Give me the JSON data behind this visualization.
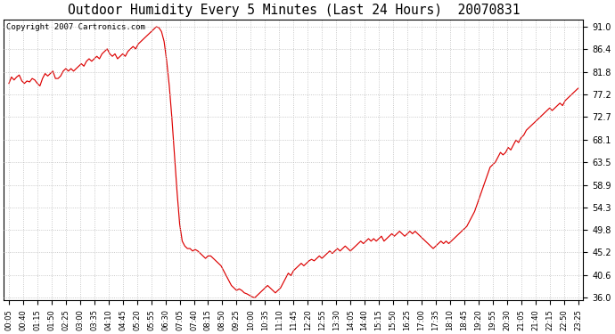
{
  "title": "Outdoor Humidity Every 5 Minutes (Last 24 Hours)  20070831",
  "copyright": "Copyright 2007 Cartronics.com",
  "line_color": "#dd0000",
  "background_color": "#ffffff",
  "grid_color": "#bbbbbb",
  "yticks": [
    36.0,
    40.6,
    45.2,
    49.8,
    54.3,
    58.9,
    63.5,
    68.1,
    72.7,
    77.2,
    81.8,
    86.4,
    91.0
  ],
  "ylim": [
    35.5,
    92.5
  ],
  "x_labels": [
    "00:05",
    "00:40",
    "01:15",
    "01:50",
    "02:25",
    "03:00",
    "03:35",
    "04:10",
    "04:45",
    "05:20",
    "05:55",
    "06:30",
    "07:05",
    "07:40",
    "08:15",
    "08:50",
    "09:25",
    "10:00",
    "10:35",
    "11:10",
    "11:45",
    "12:20",
    "12:55",
    "13:30",
    "14:05",
    "14:40",
    "15:15",
    "15:50",
    "16:25",
    "17:00",
    "17:35",
    "18:10",
    "18:45",
    "19:20",
    "19:55",
    "20:30",
    "21:05",
    "21:40",
    "22:15",
    "22:50",
    "23:25"
  ],
  "humidity_values": [
    79.5,
    80.8,
    80.2,
    80.8,
    81.2,
    80.0,
    79.5,
    80.0,
    79.8,
    80.5,
    80.2,
    79.5,
    79.0,
    80.5,
    81.5,
    81.0,
    81.5,
    82.0,
    80.5,
    80.5,
    81.0,
    82.0,
    82.5,
    82.0,
    82.5,
    82.0,
    82.5,
    83.0,
    83.5,
    83.0,
    84.0,
    84.5,
    84.0,
    84.5,
    85.0,
    84.5,
    85.5,
    86.0,
    86.5,
    85.5,
    85.0,
    85.5,
    84.5,
    85.0,
    85.5,
    85.0,
    86.0,
    86.5,
    87.0,
    86.5,
    87.5,
    88.0,
    88.5,
    89.0,
    89.5,
    90.0,
    90.5,
    91.0,
    90.8,
    90.0,
    88.0,
    84.0,
    79.0,
    72.5,
    65.0,
    57.5,
    51.0,
    47.5,
    46.5,
    46.0,
    46.0,
    45.5,
    45.8,
    45.5,
    45.0,
    44.5,
    44.0,
    44.5,
    44.5,
    44.0,
    43.5,
    43.0,
    42.5,
    41.5,
    40.5,
    39.5,
    38.5,
    38.0,
    37.5,
    37.8,
    37.5,
    37.0,
    36.8,
    36.5,
    36.2,
    36.0,
    36.5,
    37.0,
    37.5,
    38.0,
    38.5,
    38.0,
    37.5,
    37.0,
    37.5,
    38.0,
    39.0,
    40.0,
    41.0,
    40.5,
    41.5,
    42.0,
    42.5,
    43.0,
    42.5,
    43.0,
    43.5,
    43.8,
    43.5,
    44.0,
    44.5,
    44.0,
    44.5,
    45.0,
    45.5,
    45.0,
    45.5,
    46.0,
    45.5,
    46.0,
    46.5,
    46.0,
    45.5,
    46.0,
    46.5,
    47.0,
    47.5,
    47.0,
    47.5,
    48.0,
    47.5,
    48.0,
    47.5,
    48.0,
    48.5,
    47.5,
    48.0,
    48.5,
    49.0,
    48.5,
    49.0,
    49.5,
    49.0,
    48.5,
    49.0,
    49.5,
    49.0,
    49.5,
    49.0,
    48.5,
    48.0,
    47.5,
    47.0,
    46.5,
    46.0,
    46.5,
    47.0,
    47.5,
    47.0,
    47.5,
    47.0,
    47.5,
    48.0,
    48.5,
    49.0,
    49.5,
    50.0,
    50.5,
    51.5,
    52.5,
    53.5,
    55.0,
    56.5,
    58.0,
    59.5,
    61.0,
    62.5,
    63.0,
    63.5,
    64.5,
    65.5,
    65.0,
    65.5,
    66.5,
    66.0,
    67.0,
    68.0,
    67.5,
    68.5,
    69.0,
    70.0,
    70.5,
    71.0,
    71.5,
    72.0,
    72.5,
    73.0,
    73.5,
    74.0,
    74.5,
    74.0,
    74.5,
    75.0,
    75.5,
    75.0,
    76.0,
    76.5,
    77.0,
    77.5,
    78.0,
    78.5
  ]
}
